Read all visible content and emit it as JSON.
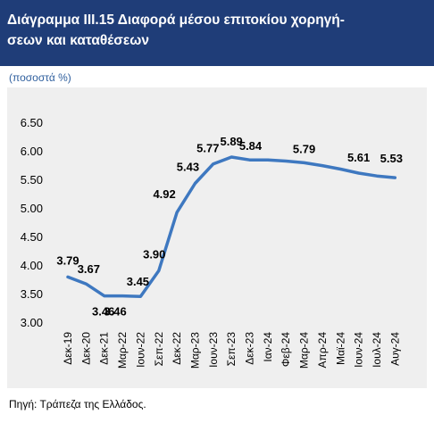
{
  "header": {
    "title_line1": "Διάγραμμα ΙΙΙ.15 Διαφορά μέσου επιτοκίου χορηγή-",
    "title_line2": "σεων και καταθέσεων"
  },
  "unit_label": "(ποσοστά %)",
  "source": "Πηγή: Τράπεζα της Ελλάδος.",
  "colors": {
    "title_bg": "#1f3d78",
    "line": "#3e78c0",
    "panel_bg": "#efefef"
  },
  "chart_data": {
    "type": "line",
    "title": "",
    "xlabel": "",
    "ylabel": "",
    "ylim": [
      3.0,
      6.5
    ],
    "yticks": [
      "3.00",
      "3.50",
      "4.00",
      "4.50",
      "5.00",
      "5.50",
      "6.00",
      "6.50"
    ],
    "grid": false,
    "legend": "none",
    "x_ticks": [
      "Δεκ-19",
      "Δεκ-20",
      "Δεκ-21",
      "Μαρ-22",
      "Ιουν-22",
      "Σεπ-22",
      "Δεκ-22",
      "Μαρ-23",
      "Ιουν-23",
      "Σεπ-23",
      "Δεκ-23",
      "Ιαν-24",
      "Φεβ-24",
      "Μαρ-24",
      "Απρ-24",
      "Μαϊ-24",
      "Ιουν-24",
      "Ιουλ-24",
      "Αυγ-24"
    ],
    "values": [
      3.79,
      3.67,
      3.46,
      3.46,
      3.45,
      3.9,
      4.92,
      5.43,
      5.77,
      5.89,
      5.84,
      5.84,
      5.82,
      5.79,
      5.74,
      5.68,
      5.61,
      5.56,
      5.53
    ],
    "data_labels": [
      {
        "index": 0,
        "text": "3.79"
      },
      {
        "index": 1,
        "text": "3.67"
      },
      {
        "index": 2,
        "text": "3.46"
      },
      {
        "index": 3,
        "text": "3.46"
      },
      {
        "index": 4,
        "text": "3.45"
      },
      {
        "index": 5,
        "text": "3.90"
      },
      {
        "index": 6,
        "text": "4.92"
      },
      {
        "index": 7,
        "text": "5.43"
      },
      {
        "index": 8,
        "text": "5.77"
      },
      {
        "index": 9,
        "text": "5.89"
      },
      {
        "index": 10,
        "text": "5.84"
      },
      {
        "index": 13,
        "text": "5.79"
      },
      {
        "index": 16,
        "text": "5.61"
      },
      {
        "index": 18,
        "text": "5.53"
      }
    ]
  }
}
